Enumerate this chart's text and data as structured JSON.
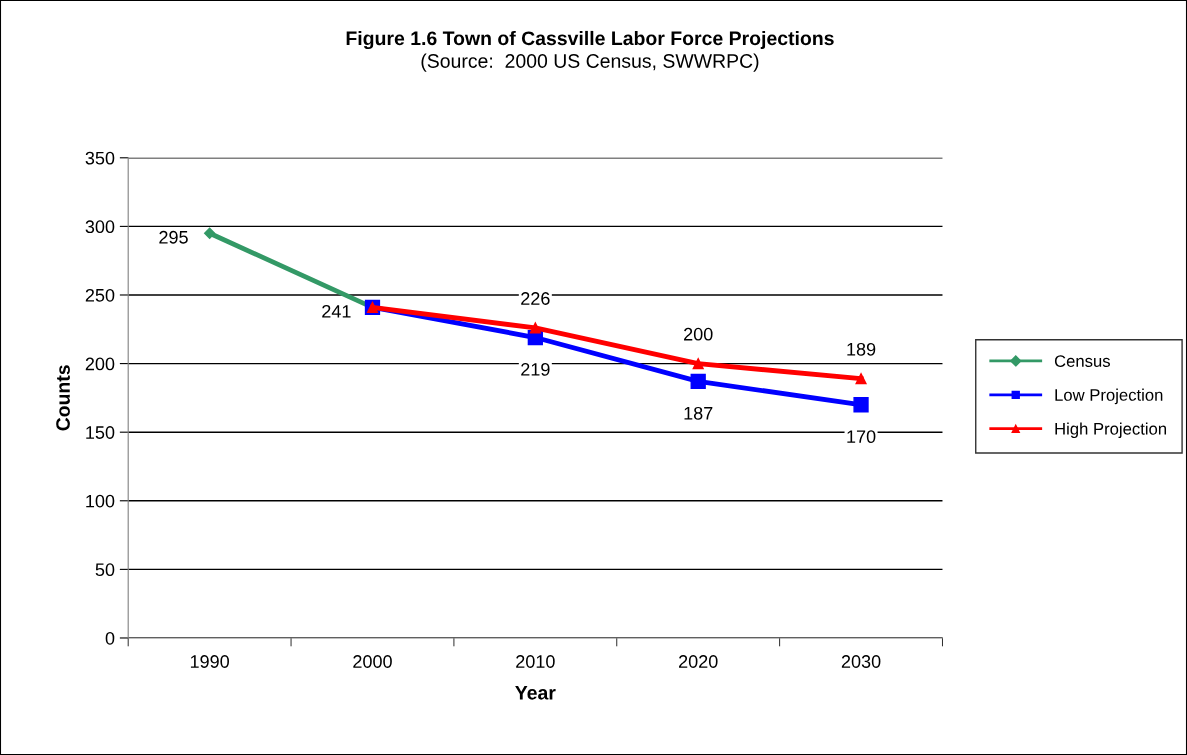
{
  "chart_data": {
    "type": "line",
    "title": "Figure 1.6 Town of Cassville Labor Force Projections",
    "subtitle": "(Source:  2000 US Census, SWWRPC)",
    "xlabel": "Year",
    "ylabel": "Counts",
    "categories": [
      "1990",
      "2000",
      "2010",
      "2020",
      "2030"
    ],
    "series": [
      {
        "name": "Census",
        "color": "#339966",
        "marker": "diamond",
        "values": [
          295,
          241,
          null,
          null,
          null
        ],
        "value_labels": [
          "295",
          "241",
          null,
          null,
          null
        ]
      },
      {
        "name": "Low Projection",
        "color": "#0000ff",
        "marker": "square",
        "values": [
          null,
          241,
          219,
          187,
          170
        ],
        "value_labels": [
          null,
          null,
          "219",
          "187",
          "170"
        ]
      },
      {
        "name": "High Projection",
        "color": "#ff0000",
        "marker": "triangle",
        "values": [
          null,
          241,
          226,
          200,
          189
        ],
        "value_labels": [
          null,
          null,
          "226",
          "200",
          "189"
        ]
      }
    ],
    "ylim": [
      0,
      350
    ],
    "yticks": [
      0,
      50,
      100,
      150,
      200,
      250,
      300,
      350
    ],
    "grid": "y",
    "legend": "right"
  }
}
